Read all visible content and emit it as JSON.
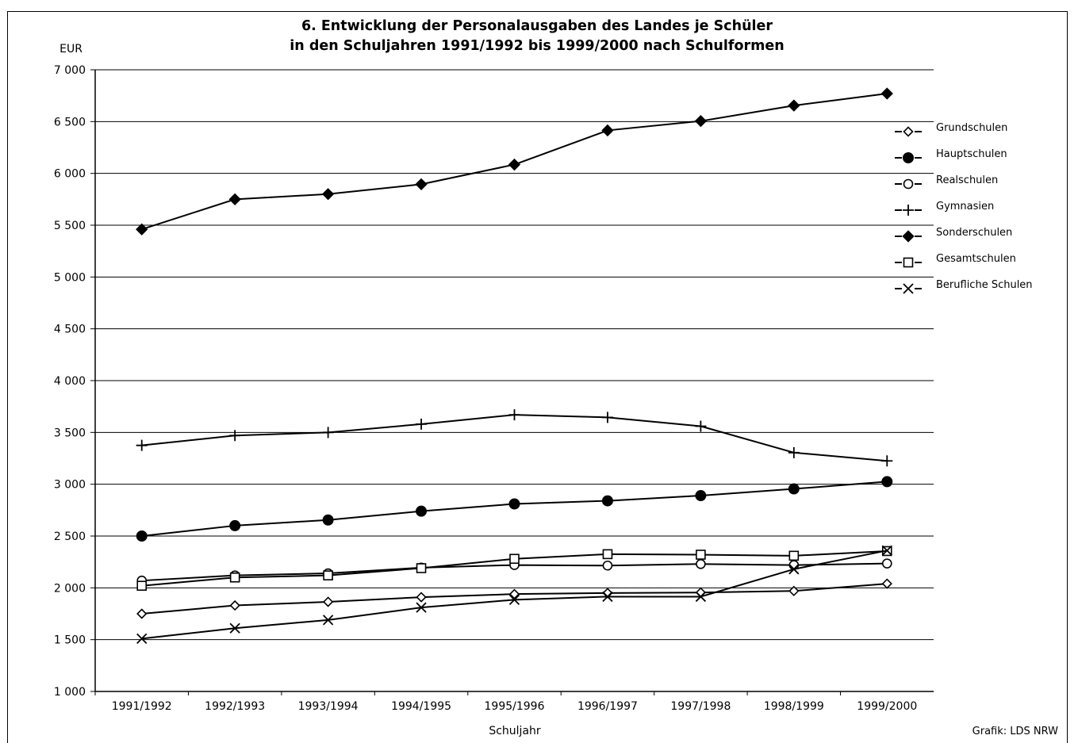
{
  "chart_data": {
    "type": "line",
    "title_lines": [
      "6. Entwicklung der Personalausgaben des Landes je Schüler",
      "in den Schuljahren 1991/1992 bis 1999/2000 nach Schulformen"
    ],
    "ylabel": "EUR",
    "xlabel": "Schuljahr",
    "source": "Grafik: LDS NRW",
    "ylim": [
      1000,
      7000
    ],
    "yticks": [
      1000,
      1500,
      2000,
      2500,
      3000,
      3500,
      4000,
      4500,
      5000,
      5500,
      6000,
      6500,
      7000
    ],
    "ytick_labels": [
      "1 000",
      "1 500",
      "2 000",
      "2 500",
      "3 000",
      "3 500",
      "4 000",
      "4 500",
      "5 000",
      "5 500",
      "6 000",
      "6 500",
      "7 000"
    ],
    "grid": "horizontal",
    "legend_position": "right",
    "categories": [
      "1991/1992",
      "1992/1993",
      "1993/1994",
      "1994/1995",
      "1995/1996",
      "1996/1997",
      "1997/1998",
      "1998/1999",
      "1999/2000"
    ],
    "series": [
      {
        "name": "Grundschulen",
        "marker": "diamond-open",
        "values": [
          1750,
          1830,
          1865,
          1910,
          1940,
          1950,
          1955,
          1970,
          2040
        ]
      },
      {
        "name": "Hauptschulen",
        "marker": "circle-filled",
        "values": [
          2500,
          2600,
          2655,
          2740,
          2810,
          2840,
          2890,
          2955,
          3025
        ]
      },
      {
        "name": "Realschulen",
        "marker": "circle-open",
        "values": [
          2070,
          2120,
          2140,
          2195,
          2220,
          2215,
          2230,
          2220,
          2235
        ]
      },
      {
        "name": "Gymnasien",
        "marker": "plus",
        "values": [
          3375,
          3470,
          3500,
          3580,
          3670,
          3645,
          3560,
          3305,
          3225
        ]
      },
      {
        "name": "Sonderschulen",
        "marker": "diamond-filled",
        "values": [
          5460,
          5750,
          5800,
          5895,
          6085,
          6415,
          6505,
          6655,
          6770
        ]
      },
      {
        "name": "Gesamtschulen",
        "marker": "square-open",
        "values": [
          2020,
          2100,
          2120,
          2190,
          2280,
          2325,
          2320,
          2310,
          2355
        ]
      },
      {
        "name": "Berufliche Schulen",
        "marker": "cross",
        "values": [
          1510,
          1610,
          1690,
          1810,
          1885,
          1915,
          1915,
          2180,
          2360
        ]
      }
    ]
  }
}
